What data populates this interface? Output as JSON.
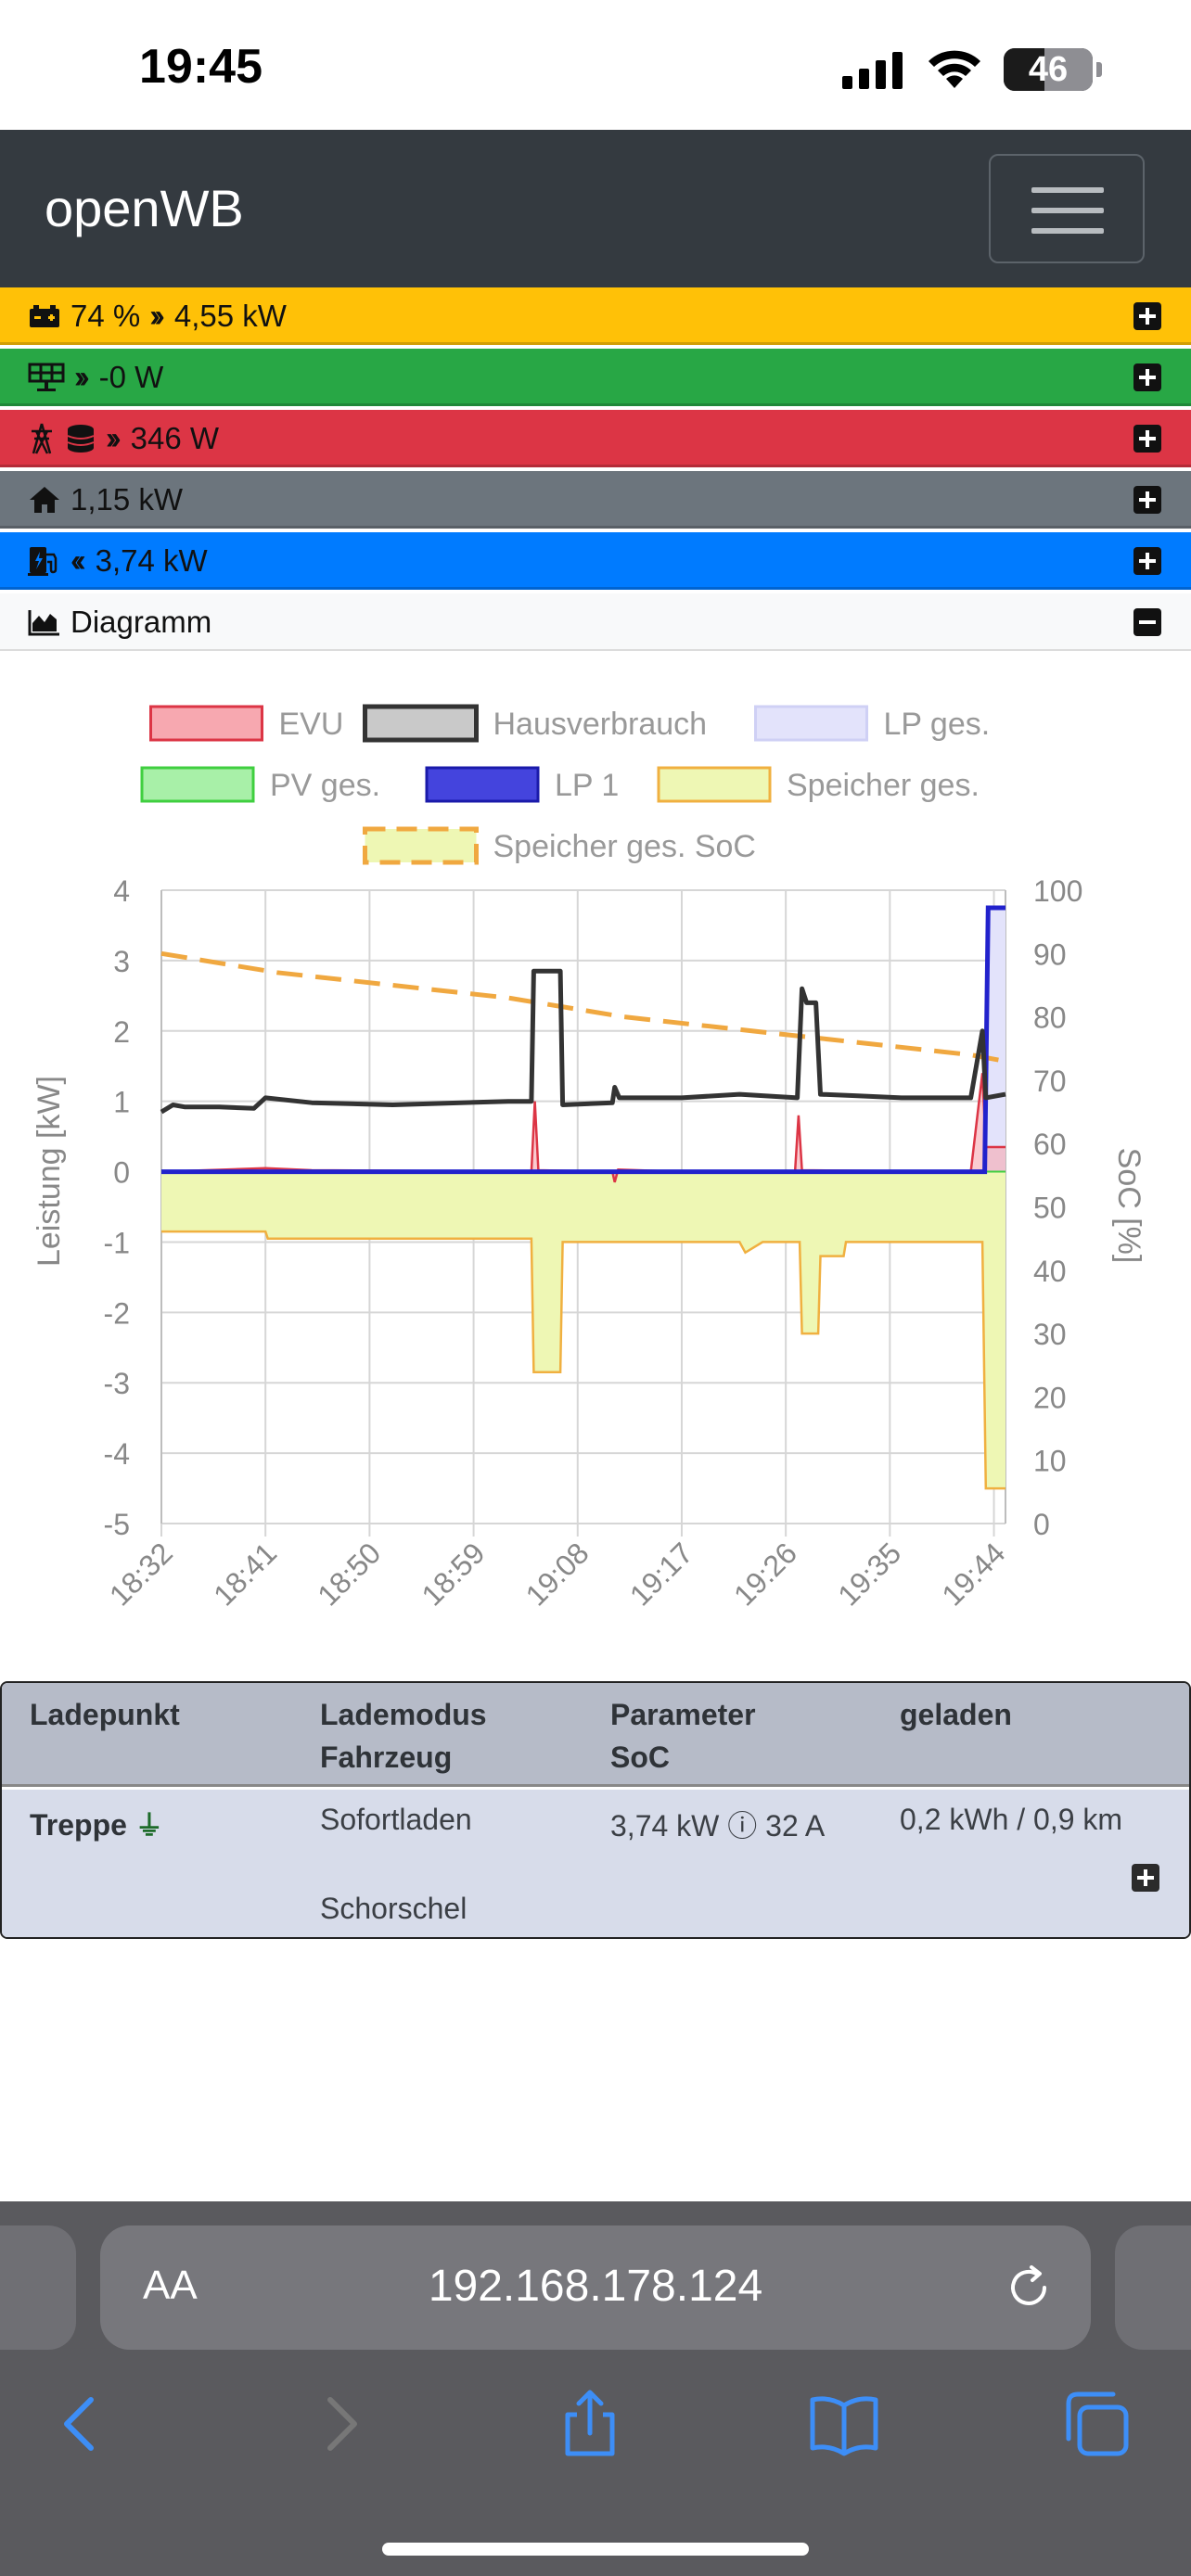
{
  "status_bar": {
    "time": "19:45",
    "battery": "46"
  },
  "navbar": {
    "brand": "openWB"
  },
  "status_rows": {
    "battery": {
      "soc": "74 %",
      "power": "4,55 kW",
      "color": "#ffc107"
    },
    "pv": {
      "power": "-0 W",
      "color": "#28a745"
    },
    "grid": {
      "power": "346 W",
      "color": "#dc3545"
    },
    "house": {
      "power": "1,15 kW",
      "color": "#6c757d"
    },
    "chargepoint": {
      "power": "3,74 kW",
      "color": "#007bff"
    },
    "diagram": {
      "label": "Diagramm"
    }
  },
  "chart_data": {
    "type": "line",
    "legend": [
      {
        "name": "EVU",
        "fill": "#f7a8b0",
        "stroke": "#dc3545",
        "dashed": false
      },
      {
        "name": "Hausverbrauch",
        "fill": "#c9c9c9",
        "stroke": "#333333",
        "dashed": false
      },
      {
        "name": "LP ges.",
        "fill": "#e3e3fb",
        "stroke": "#cfd0f5",
        "dashed": false
      },
      {
        "name": "PV ges.",
        "fill": "#a8f0a8",
        "stroke": "#3fcf3f",
        "dashed": false
      },
      {
        "name": "LP 1",
        "fill": "#4444dd",
        "stroke": "#1a1aaa",
        "dashed": false
      },
      {
        "name": "Speicher ges.",
        "fill": "#eef7b4",
        "stroke": "#f0b040",
        "dashed": false
      },
      {
        "name": "Speicher ges. SoC",
        "fill": "#eef7b4",
        "stroke": "#f0a840",
        "dashed": true
      }
    ],
    "ylabel": "Leistung [kW]",
    "y2label": "SoC [%]",
    "ylim": [
      -5,
      4
    ],
    "y2lim": [
      0,
      100
    ],
    "yticks": [
      "4",
      "3",
      "2",
      "1",
      "0",
      "-1",
      "-2",
      "-3",
      "-4",
      "-5"
    ],
    "y2ticks": [
      "100",
      "90",
      "80",
      "70",
      "60",
      "50",
      "40",
      "30",
      "20",
      "10",
      "0"
    ],
    "xticks": [
      "18:32",
      "18:41",
      "18:50",
      "18:59",
      "19:08",
      "19:17",
      "19:26",
      "19:35",
      "19:44"
    ],
    "xlim": [
      0,
      73
    ],
    "series": {
      "hausverbrauch": [
        [
          0,
          0.85
        ],
        [
          1,
          0.95
        ],
        [
          2,
          0.92
        ],
        [
          5,
          0.92
        ],
        [
          8,
          0.9
        ],
        [
          9,
          1.05
        ],
        [
          13,
          0.98
        ],
        [
          20,
          0.95
        ],
        [
          30,
          1.0
        ],
        [
          32,
          1.0
        ],
        [
          32.2,
          2.85
        ],
        [
          34.5,
          2.85
        ],
        [
          34.7,
          0.95
        ],
        [
          39,
          0.98
        ],
        [
          39.2,
          1.2
        ],
        [
          39.6,
          1.05
        ],
        [
          45,
          1.05
        ],
        [
          50,
          1.1
        ],
        [
          55,
          1.05
        ],
        [
          55.4,
          2.6
        ],
        [
          55.8,
          2.4
        ],
        [
          56.6,
          2.4
        ],
        [
          57,
          1.1
        ],
        [
          60,
          1.08
        ],
        [
          64,
          1.05
        ],
        [
          70,
          1.05
        ],
        [
          71,
          2.0
        ],
        [
          71.3,
          1.05
        ],
        [
          73,
          1.1
        ]
      ],
      "evu": [
        [
          0,
          0.0
        ],
        [
          9,
          0.05
        ],
        [
          13,
          0.02
        ],
        [
          32,
          0.0
        ],
        [
          32.3,
          1.0
        ],
        [
          32.6,
          0.02
        ],
        [
          39,
          0.0
        ],
        [
          39.2,
          -0.15
        ],
        [
          39.5,
          0.03
        ],
        [
          45,
          0.0
        ],
        [
          54.8,
          0.0
        ],
        [
          55.1,
          0.8
        ],
        [
          55.4,
          0.02
        ],
        [
          70,
          0.0
        ],
        [
          71,
          1.4
        ],
        [
          71.3,
          0.35
        ],
        [
          73,
          0.35
        ]
      ],
      "speicher": [
        [
          0,
          -0.85
        ],
        [
          9,
          -0.85
        ],
        [
          9.2,
          -0.95
        ],
        [
          32,
          -0.95
        ],
        [
          32.2,
          -2.85
        ],
        [
          34.5,
          -2.85
        ],
        [
          34.7,
          -1.0
        ],
        [
          39,
          -1.0
        ],
        [
          50,
          -1.0
        ],
        [
          50.5,
          -1.15
        ],
        [
          52,
          -1.0
        ],
        [
          55.2,
          -1.0
        ],
        [
          55.4,
          -2.3
        ],
        [
          56.8,
          -2.3
        ],
        [
          57,
          -1.2
        ],
        [
          59,
          -1.2
        ],
        [
          59.2,
          -1.0
        ],
        [
          71,
          -1.0
        ],
        [
          71.3,
          -4.5
        ],
        [
          73,
          -4.5
        ]
      ],
      "lp1": [
        [
          0,
          0
        ],
        [
          71.2,
          0
        ],
        [
          71.5,
          3.75
        ],
        [
          73,
          3.75
        ]
      ],
      "soc": [
        [
          0,
          90
        ],
        [
          10,
          87
        ],
        [
          20,
          85
        ],
        [
          30,
          83
        ],
        [
          40,
          80
        ],
        [
          50,
          78
        ],
        [
          60,
          76
        ],
        [
          70,
          74
        ],
        [
          73,
          73
        ]
      ]
    }
  },
  "table": {
    "headers": [
      [
        "Ladepunkt",
        ""
      ],
      [
        "Lademodus",
        "Fahrzeug"
      ],
      [
        "Parameter",
        "SoC"
      ],
      [
        "geladen",
        ""
      ]
    ],
    "row": {
      "name": "Treppe",
      "mode": "Sofortladen",
      "vehicle": "Schorschel",
      "params": "3,74 kW ⓘ 32 A",
      "charged": "0,2 kWh / 0,9 km"
    }
  },
  "browser": {
    "aa": "AA",
    "url": "192.168.178.124"
  }
}
